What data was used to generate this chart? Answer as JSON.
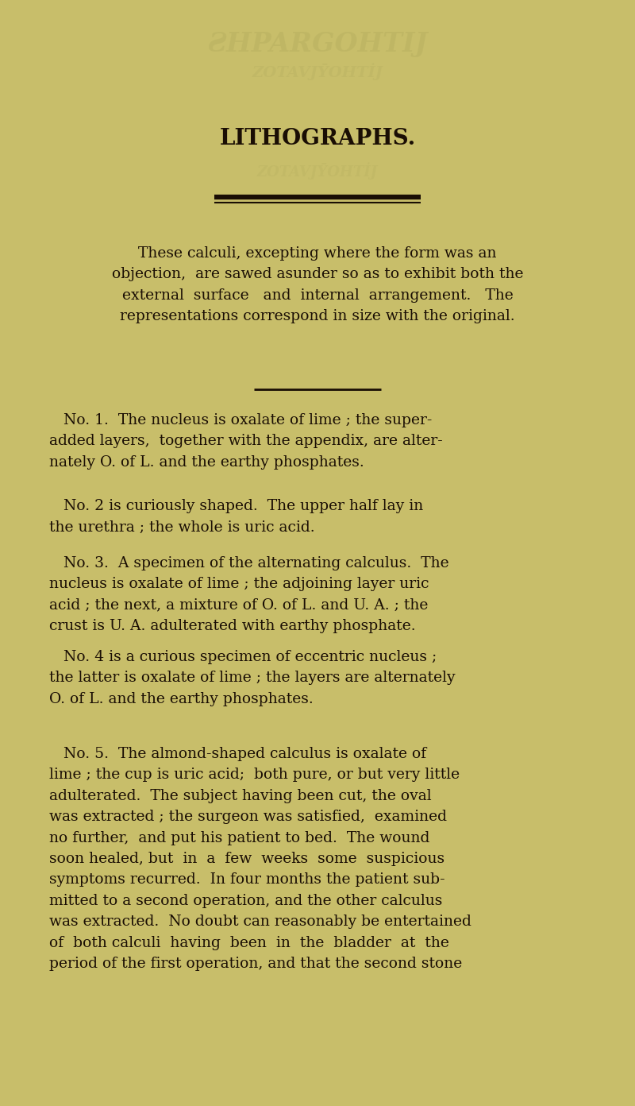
{
  "background_color": "#c8be6a",
  "text_color": "#1a0e04",
  "title": "LITHOGRAPHS.",
  "title_fontsize": 20,
  "ghost_color": "#b8b060",
  "divider_color": "#1a0e04",
  "paragraphs": [
    {
      "text": "These calculi, excepting where the form was an\nobjection,  are sawed asunder so as to exhibit both the\nexternal  surface   and  internal  arrangement.   The\nrepresentations correspond in size with the original.",
      "fontsize": 13.5,
      "style": "body"
    },
    {
      "text": "   No. 1.  The nucleus is oxalate of lime ; the super-\nadded layers,  together with the appendix, are alter-\nnately O. of L. and the earthy phosphates.",
      "fontsize": 13.5,
      "style": "numbered"
    },
    {
      "text": "   No. 2 is curiously shaped.  The upper half lay in\nthe urethra ; the whole is uric acid.",
      "fontsize": 13.5,
      "style": "numbered"
    },
    {
      "text": "   No. 3.  A specimen of the alternating calculus.  The\nnucleus is oxalate of lime ; the adjoining layer uric\nacid ; the next, a mixture of O. of L. and U. A. ; the\ncrust is U. A. adulterated with earthy phosphate.",
      "fontsize": 13.5,
      "style": "numbered"
    },
    {
      "text": "   No. 4 is a curious specimen of eccentric nucleus ;\nthe latter is oxalate of lime ; the layers are alternately\nO. of L. and the earthy phosphates.",
      "fontsize": 13.5,
      "style": "numbered"
    },
    {
      "text": "   No. 5.  The almond-shaped calculus is oxalate of\nlime ; the cup is uric acid;  both pure, or but very little\nadulterated.  The subject having been cut, the oval\nwas extracted ; the surgeon was satisfied,  examined\nno further,  and put his patient to bed.  The wound\nsoon healed, but  in  a  few  weeks  some  suspicious\nsymptoms recurred.  In four months the patient sub-\nmitted to a second operation, and the other calculus\nwas extracted.  No doubt can reasonably be entertained\nof  both calculi  having  been  in  the  bladder  at  the\nperiod of the first operation, and that the second stone",
      "fontsize": 13.5,
      "style": "numbered"
    }
  ]
}
